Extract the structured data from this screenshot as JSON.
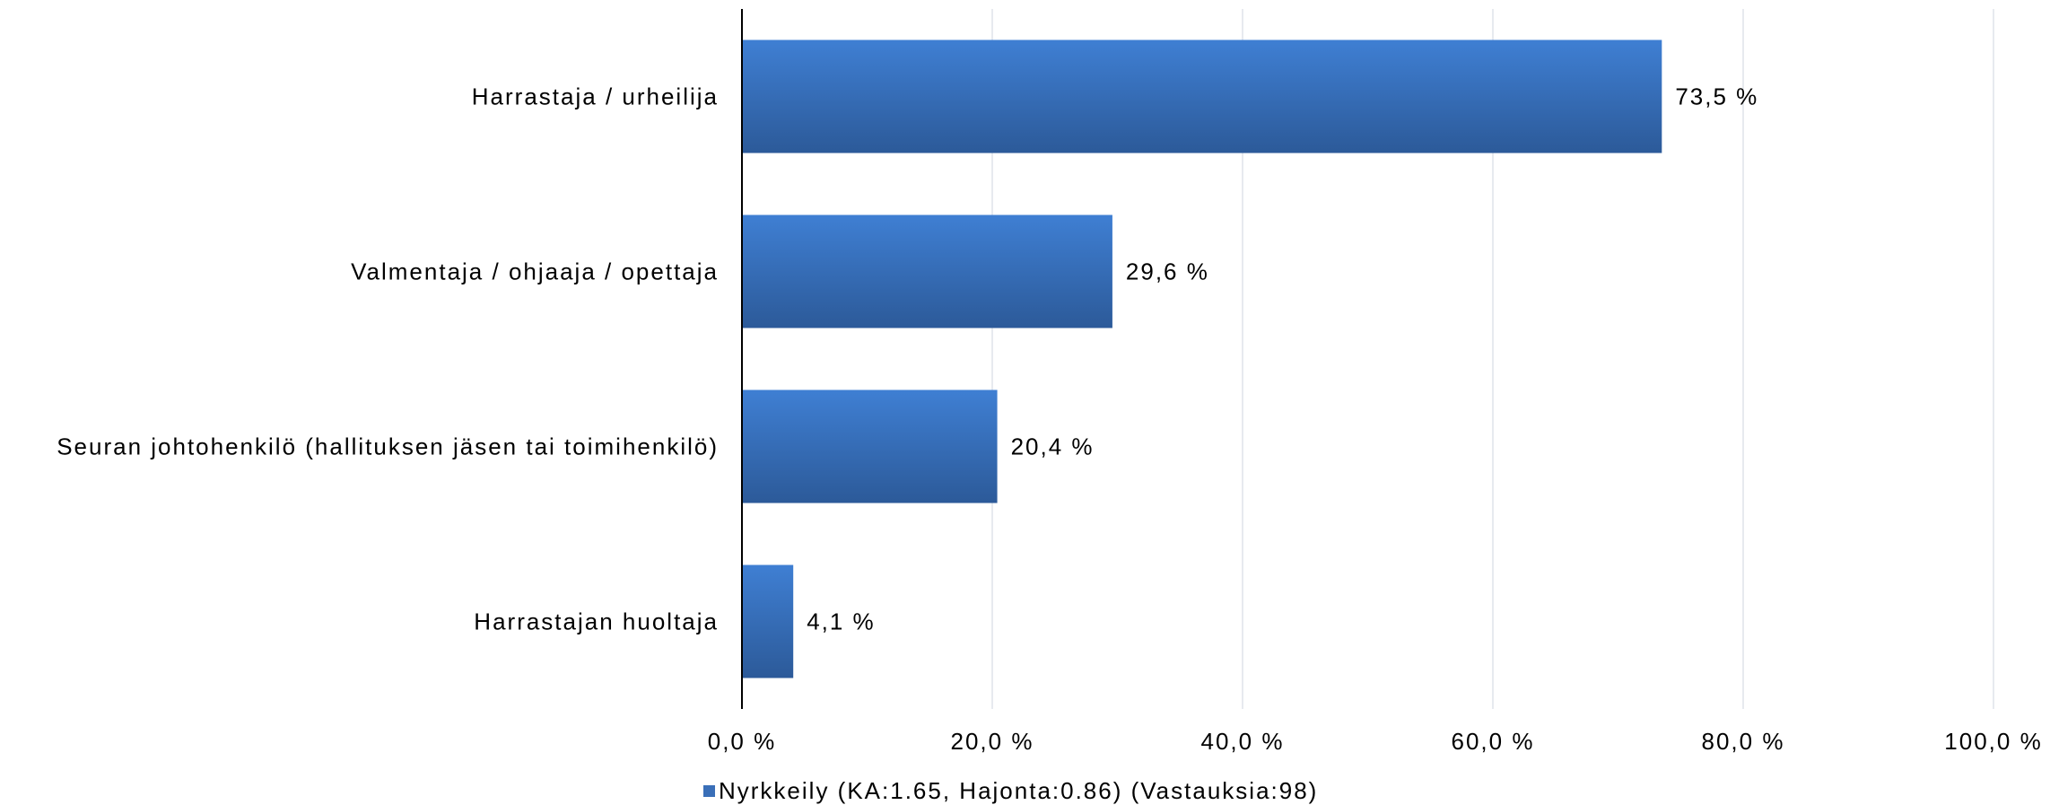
{
  "chart_data": {
    "type": "bar",
    "orientation": "horizontal",
    "categories": [
      "Harrastaja / urheilija",
      "Valmentaja / ohjaaja / opettaja",
      "Seuran johtohenkilö (hallituksen jäsen tai toimihenkilö)",
      "Harrastajan huoltaja"
    ],
    "series": [
      {
        "name": "Nyrkkeily (KA:1.65, Hajonta:0.86) (Vastauksia:98)",
        "values": [
          73.5,
          29.6,
          20.4,
          4.1
        ],
        "value_labels": [
          "73,5 %",
          "29,6 %",
          "20,4 %",
          "4,1 %"
        ],
        "color": "#3a6fb8"
      }
    ],
    "xlim": [
      0,
      100
    ],
    "x_ticks": [
      0,
      20,
      40,
      60,
      80,
      100
    ],
    "x_tick_labels": [
      "0,0 %",
      "20,0 %",
      "40,0 %",
      "60,0 %",
      "80,0 %",
      "100,0 %"
    ],
    "title": "",
    "xlabel": "",
    "ylabel": "",
    "grid": "vertical",
    "legend_position": "bottom"
  }
}
